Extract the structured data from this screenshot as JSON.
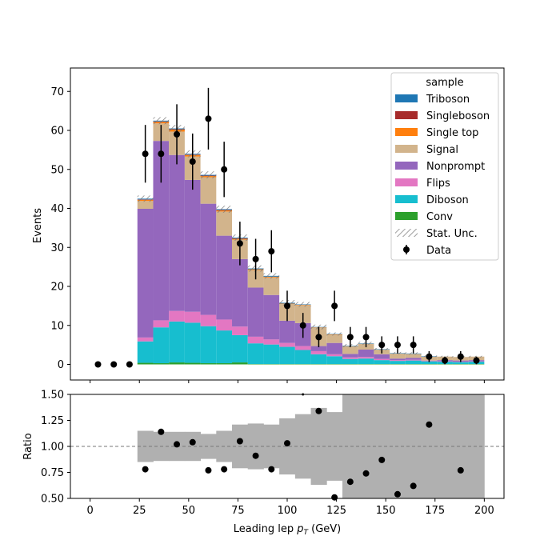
{
  "chart_data": {
    "type": "bar",
    "subtype": "stacked-histogram-with-ratio",
    "xlabel_main": "Leading lep ",
    "xlabel_sub": "p",
    "xlabel_subscript": "T",
    "xlabel_unit": " (GeV)",
    "ylabel": "Events",
    "ratio_ylabel": "Ratio",
    "xlim": [
      -10,
      210
    ],
    "ylim": [
      -4,
      76
    ],
    "ratio_ylim": [
      0.5,
      1.5
    ],
    "xticks": [
      0,
      25,
      50,
      75,
      100,
      125,
      150,
      175,
      200
    ],
    "yticks": [
      0,
      10,
      20,
      30,
      40,
      50,
      60,
      70
    ],
    "ratio_yticks": [
      "0.50",
      "0.75",
      "1.00",
      "1.25",
      "1.50"
    ],
    "ratio_ytick_values": [
      0.5,
      0.75,
      1.0,
      1.25,
      1.5
    ],
    "bin_edges": [
      24,
      32,
      40,
      48,
      56,
      64,
      72,
      80,
      88,
      96,
      104,
      112,
      120,
      128,
      136,
      144,
      152,
      160,
      168,
      176,
      184,
      192,
      200
    ],
    "legend_title": "sample",
    "legend_position": "top-right",
    "legend": [
      "Triboson",
      "Singleboson",
      "Single top",
      "Signal",
      "Nonprompt",
      "Flips",
      "Diboson",
      "Conv",
      "Stat. Unc.",
      "Data"
    ],
    "colors": {
      "Triboson": "#1f77b4",
      "Singleboson": "#a72b2b",
      "Single top": "#ff7f0e",
      "Signal": "#d2b48c",
      "Nonprompt": "#9467bd",
      "Flips": "#e377c2",
      "Diboson": "#17becf",
      "Conv": "#2ca02c",
      "band": "#b0b0b0"
    },
    "series": [
      {
        "name": "Conv",
        "values": [
          0.4,
          0.3,
          0.5,
          0.4,
          0.3,
          0.3,
          0.5,
          0.1,
          0.1,
          0.1,
          0.1,
          0.1,
          0.1,
          0.1,
          0.1,
          0.1,
          0.1,
          0.1,
          0.1,
          0.1,
          0.1,
          0.1
        ]
      },
      {
        "name": "Diboson",
        "values": [
          5.5,
          9.2,
          10.5,
          10.3,
          9.5,
          8.4,
          7.0,
          5.3,
          5.0,
          4.4,
          3.6,
          2.5,
          2.0,
          1.3,
          1.4,
          1.0,
          0.8,
          0.9,
          0.7,
          0.6,
          0.5,
          0.6
        ]
      },
      {
        "name": "Flips",
        "values": [
          1.0,
          1.8,
          2.7,
          2.8,
          2.9,
          2.8,
          2.2,
          1.7,
          1.3,
          1.0,
          1.0,
          0.8,
          0.5,
          0.4,
          0.4,
          0.3,
          0.2,
          0.2,
          0.2,
          0.1,
          0.1,
          0.1
        ]
      },
      {
        "name": "Nonprompt",
        "values": [
          33.0,
          46.0,
          40.0,
          33.8,
          28.5,
          21.5,
          17.3,
          12.6,
          11.4,
          5.7,
          5.9,
          1.3,
          2.9,
          0.9,
          1.9,
          1.2,
          0.4,
          0.5,
          0.0,
          0.3,
          0.3,
          0.3
        ]
      },
      {
        "name": "Signal",
        "values": [
          2.0,
          4.5,
          6.0,
          6.0,
          6.8,
          6.2,
          5.0,
          4.5,
          4.5,
          4.3,
          4.6,
          4.7,
          2.1,
          2.0,
          1.5,
          1.2,
          1.3,
          1.0,
          1.0,
          0.9,
          0.9,
          0.9
        ]
      },
      {
        "name": "Single top",
        "values": [
          0.3,
          0.4,
          0.5,
          0.4,
          0.3,
          0.3,
          0.2,
          0.2,
          0.2,
          0.1,
          0.1,
          0.1,
          0.1,
          0.0,
          0.0,
          0.0,
          0.0,
          0.0,
          0.0,
          0.0,
          0.0,
          0.0
        ]
      },
      {
        "name": "Singleboson",
        "values": [
          0.1,
          0.1,
          0.1,
          0.1,
          0.1,
          0.1,
          0.1,
          0.0,
          0.0,
          0.0,
          0.0,
          0.0,
          0.0,
          0.0,
          0.0,
          0.0,
          0.0,
          0.0,
          0.0,
          0.0,
          0.0,
          0.0
        ]
      },
      {
        "name": "Triboson",
        "values": [
          0.2,
          0.2,
          0.2,
          0.2,
          0.2,
          0.2,
          0.2,
          0.2,
          0.2,
          0.2,
          0.1,
          0.1,
          0.1,
          0.1,
          0.1,
          0.1,
          0.1,
          0.1,
          0.1,
          0.0,
          0.0,
          0.0
        ]
      }
    ],
    "stat_unc": [
      0.8,
      0.9,
      0.9,
      0.9,
      0.9,
      0.9,
      0.8,
      0.8,
      0.7,
      0.7,
      0.6,
      0.6,
      0.4,
      0.4,
      0.4,
      0.3,
      0.3,
      0.3,
      0.2,
      0.2,
      0.2,
      0.2
    ],
    "data": {
      "x": [
        4,
        12,
        20,
        28,
        36,
        44,
        52,
        60,
        68,
        76,
        84,
        92,
        100,
        108,
        116,
        124,
        132,
        140,
        148,
        156,
        164,
        172,
        180,
        188,
        196
      ],
      "y": [
        0,
        0,
        0,
        54,
        54,
        59,
        52,
        63,
        50,
        31,
        27,
        29,
        15,
        10,
        7,
        15,
        7,
        7,
        5,
        5,
        5,
        2,
        1,
        2,
        1
      ],
      "yerr": [
        0,
        0,
        0,
        7.4,
        7.4,
        7.7,
        7.2,
        7.9,
        7.1,
        5.6,
        5.2,
        5.4,
        3.9,
        3.2,
        2.6,
        3.9,
        2.6,
        2.6,
        2.2,
        2.2,
        2.2,
        1.4,
        1.0,
        1.4,
        1.0
      ]
    },
    "ratio": {
      "x": [
        28,
        36,
        44,
        52,
        60,
        68,
        76,
        84,
        92,
        100,
        108,
        116,
        124,
        132,
        140,
        148,
        156,
        164,
        172,
        188
      ],
      "y": [
        0.78,
        1.14,
        1.02,
        1.04,
        0.77,
        0.78,
        1.05,
        0.91,
        0.78,
        1.03,
        1.54,
        1.34,
        0.51,
        0.66,
        0.74,
        0.87,
        0.54,
        0.62,
        1.21,
        0.77
      ],
      "band_half_width": [
        0.15,
        0.14,
        0.14,
        0.14,
        0.12,
        0.15,
        0.21,
        0.22,
        0.21,
        0.27,
        0.31,
        0.37,
        0.33,
        0.6,
        0.7,
        0.8,
        0.86,
        0.86,
        0.86,
        0.86,
        0.86,
        0.86
      ]
    }
  }
}
